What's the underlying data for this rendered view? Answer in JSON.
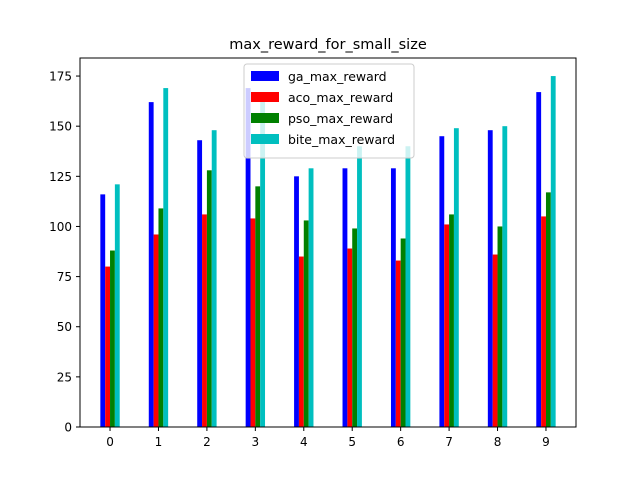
{
  "chart_data": {
    "type": "bar",
    "title": "max_reward_for_small_size",
    "xlabel": "",
    "ylabel": "",
    "categories": [
      "0",
      "1",
      "2",
      "3",
      "4",
      "5",
      "6",
      "7",
      "8",
      "9"
    ],
    "ylim": [
      0,
      184
    ],
    "yticks": [
      0,
      25,
      50,
      75,
      100,
      125,
      150,
      175
    ],
    "xlim": [
      -0.62,
      9.62
    ],
    "grid": false,
    "legend_position": "top-center",
    "series": [
      {
        "name": "ga_max_reward",
        "color": "#0000ff",
        "values": [
          116,
          162,
          143,
          169,
          125,
          129,
          129,
          145,
          148,
          167
        ]
      },
      {
        "name": "aco_max_reward",
        "color": "#ff0000",
        "values": [
          80,
          96,
          106,
          104,
          85,
          89,
          83,
          101,
          86,
          105
        ]
      },
      {
        "name": "pso_max_reward",
        "color": "#008000",
        "values": [
          88,
          109,
          128,
          120,
          103,
          99,
          94,
          106,
          100,
          117
        ]
      },
      {
        "name": "bite_max_reward",
        "color": "#00bfbf",
        "values": [
          121,
          169,
          148,
          166,
          129,
          140,
          140,
          149,
          150,
          175
        ]
      }
    ]
  }
}
